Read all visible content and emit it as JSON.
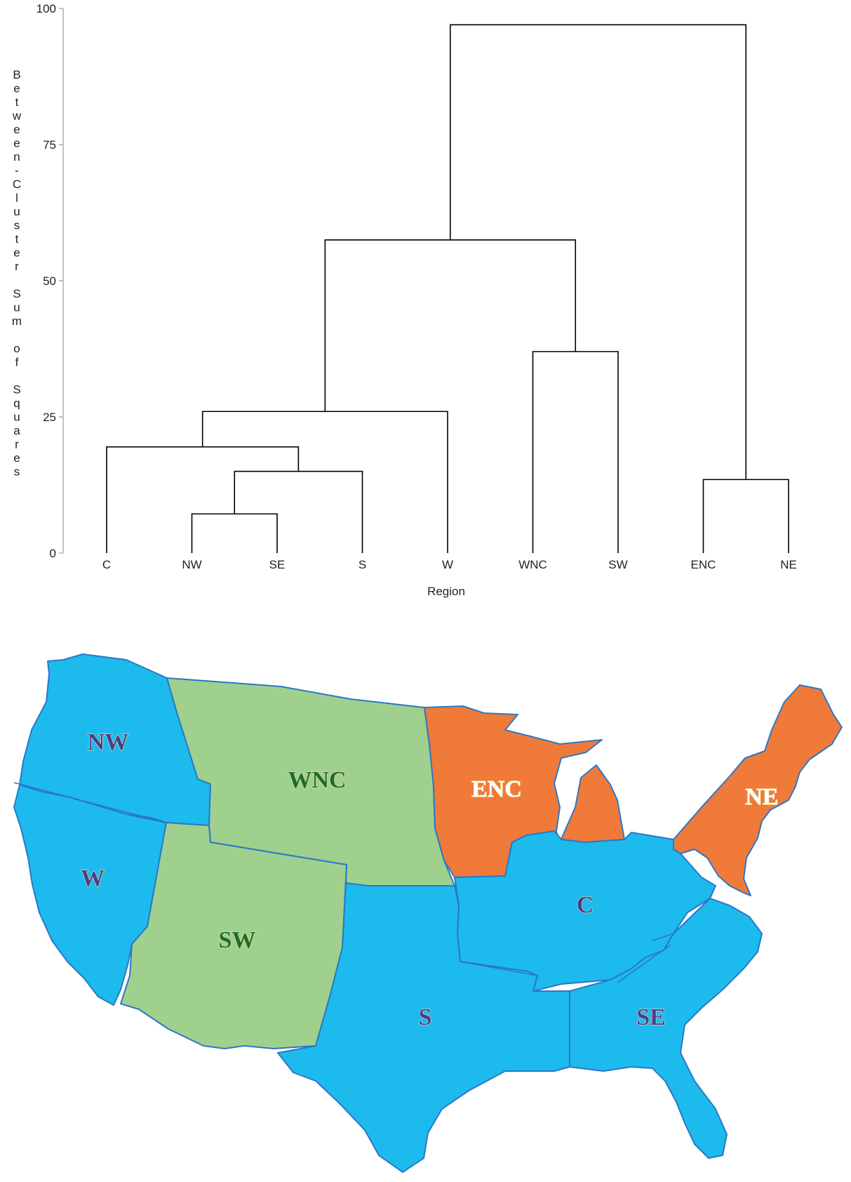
{
  "chart_data": [
    {
      "type": "dendrogram",
      "ylabel": "Between-Cluster Sum of Squares",
      "xlabel": "Region",
      "ylim": [
        0,
        100
      ],
      "yticks": [
        "0",
        "25",
        "50",
        "75",
        "100"
      ],
      "leaves": [
        "C",
        "NW",
        "SE",
        "S",
        "W",
        "WNC",
        "SW",
        "ENC",
        "NE"
      ],
      "merges": [
        {
          "left": "NW",
          "right": "SE",
          "height": 7.2
        },
        {
          "left": "NW+SE",
          "right": "S",
          "height": 15.0
        },
        {
          "left": "C",
          "right": "NW+SE+S",
          "height": 19.5
        },
        {
          "left": "C+NW+SE+S",
          "right": "W",
          "height": 26.0
        },
        {
          "left": "WNC",
          "right": "SW",
          "height": 37.0
        },
        {
          "left": "C+NW+SE+S+W",
          "right": "WNC+SW",
          "height": 57.5
        },
        {
          "left": "ENC",
          "right": "NE",
          "height": 13.5
        },
        {
          "left": "all-west",
          "right": "ENC+NE",
          "height": 97.0
        }
      ],
      "grid": false,
      "line_color": "#000000"
    },
    {
      "type": "map",
      "regions": [
        {
          "code": "NW",
          "cluster": "blue"
        },
        {
          "code": "W",
          "cluster": "blue"
        },
        {
          "code": "WNC",
          "cluster": "green"
        },
        {
          "code": "SW",
          "cluster": "green"
        },
        {
          "code": "ENC",
          "cluster": "orange"
        },
        {
          "code": "NE",
          "cluster": "orange"
        },
        {
          "code": "C",
          "cluster": "blue"
        },
        {
          "code": "S",
          "cluster": "blue"
        },
        {
          "code": "SE",
          "cluster": "blue"
        }
      ],
      "colors": {
        "blue": "#1dbaee",
        "green": "#a0d08e",
        "orange": "#f07a3a",
        "border": "#2b78c4",
        "label_blue": "#4a3d8f",
        "label_green": "#1f6b2e",
        "label_orange": "#e23a4a"
      }
    }
  ]
}
